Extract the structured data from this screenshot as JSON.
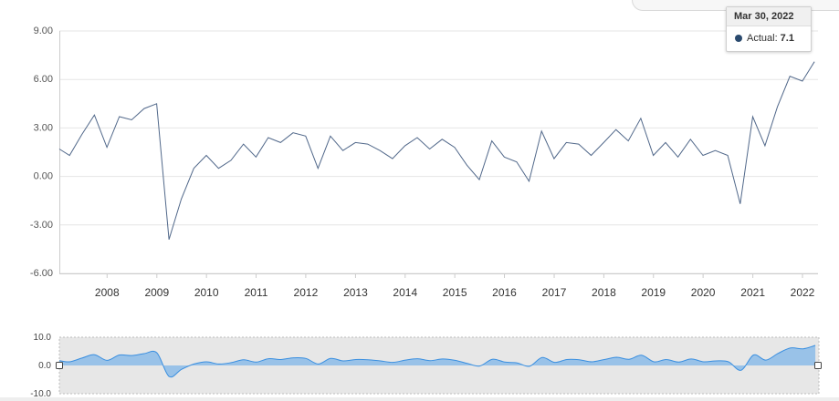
{
  "chart_data": {
    "type": "line",
    "series": [
      {
        "x": [
          "2007-03-31",
          "2007-06-30",
          "2007-09-30",
          "2007-12-31",
          "2008-03-31",
          "2008-06-30",
          "2008-09-30",
          "2008-12-31",
          "2009-03-31",
          "2009-06-30",
          "2009-09-30",
          "2009-12-31",
          "2010-03-31",
          "2010-06-30",
          "2010-09-30",
          "2010-12-31",
          "2011-03-31",
          "2011-06-30",
          "2011-09-30",
          "2011-12-31",
          "2012-03-31",
          "2012-06-30",
          "2012-09-30",
          "2012-12-31",
          "2013-03-31",
          "2013-06-30",
          "2013-09-30",
          "2013-12-31",
          "2014-03-31",
          "2014-06-30",
          "2014-09-30",
          "2014-12-31",
          "2015-03-31",
          "2015-06-30",
          "2015-09-30",
          "2015-12-31",
          "2016-03-31",
          "2016-06-30",
          "2016-09-30",
          "2016-12-31",
          "2017-03-31",
          "2017-06-30",
          "2017-09-30",
          "2017-12-31",
          "2018-03-31",
          "2018-06-30",
          "2018-09-30",
          "2018-12-31",
          "2019-03-31",
          "2019-06-30",
          "2019-09-30",
          "2019-12-31",
          "2020-03-31",
          "2020-06-30",
          "2020-09-30",
          "2020-12-31",
          "2021-03-31",
          "2021-06-30",
          "2021-09-30",
          "2021-12-31",
          "2022-03-30"
        ],
        "y": [
          1.3,
          2.6,
          3.8,
          1.8,
          3.7,
          3.5,
          4.2,
          4.5,
          -3.9,
          -1.4,
          0.5,
          1.3,
          0.5,
          1.0,
          2.0,
          1.2,
          2.4,
          2.1,
          2.7,
          2.5,
          0.5,
          2.5,
          1.6,
          2.1,
          2.0,
          1.6,
          1.1,
          1.9,
          2.4,
          1.7,
          2.3,
          1.8,
          0.7,
          -0.2,
          2.2,
          1.2,
          0.9,
          -0.3,
          2.8,
          1.1,
          2.1,
          2.0,
          1.3,
          2.1,
          2.9,
          2.2,
          3.6,
          1.3,
          2.1,
          1.2,
          2.3,
          1.3,
          1.6,
          1.3,
          -1.7,
          3.7,
          1.9,
          4.3,
          6.2,
          5.9,
          7.1
        ]
      }
    ],
    "first_point": {
      "x": "2007-01-15",
      "y": 1.7
    },
    "y_ticks": [
      "9.00",
      "6.00",
      "3.00",
      "0.00",
      "-3.00",
      "-6.00"
    ],
    "ylim": [
      -6,
      9
    ],
    "x_ticks": [
      "2008",
      "2009",
      "2010",
      "2011",
      "2012",
      "2013",
      "2014",
      "2015",
      "2016",
      "2017",
      "2018",
      "2019",
      "2020",
      "2021",
      "2022"
    ],
    "xlim": [
      "2007-01-15",
      "2022-04-25"
    ],
    "grid": true,
    "line_color": "#51688a",
    "navigator": {
      "y_ticks": [
        "10.0",
        "0.0",
        "-10.0"
      ],
      "ylim": [
        -10,
        10
      ],
      "fill_color": "#7fb6e8",
      "line_color": "#3a8fe0",
      "mask_color": "#e7e7e7"
    },
    "tooltip": {
      "date": "Mar 30, 2022",
      "series_label": "Actual:",
      "value": "7.1",
      "dot_color": "#2a4a6e"
    }
  }
}
